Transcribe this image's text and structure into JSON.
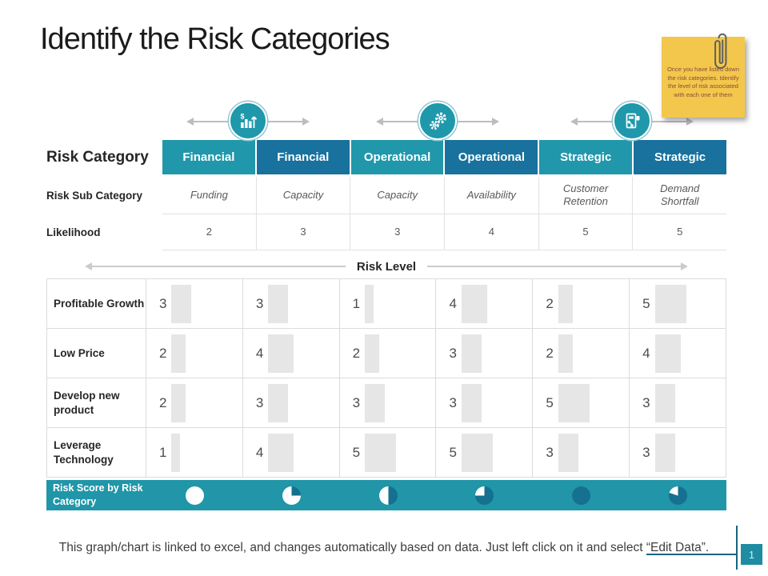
{
  "slide": {
    "title": "Identify the Risk Categories",
    "footer_note": "This graph/chart is linked to excel, and changes automatically based on data. Just left click on it and select “Edit Data”.",
    "page_number": "1"
  },
  "sticky_note": {
    "text": "Once you have listed down the risk categories. Identify the level of risk associated with each one of them"
  },
  "risk_table": {
    "category_label": "Risk Category",
    "categories": [
      "Financial",
      "Financial",
      "Operational",
      "Operational",
      "Strategic",
      "Strategic"
    ],
    "sub_category_label": "Risk Sub Category",
    "sub_categories": [
      "Funding",
      "Capacity",
      "Capacity",
      "Availability",
      "Customer Retention",
      "Demand Shortfall"
    ],
    "likelihood_label": "Likelihood",
    "likelihood_values": [
      "2",
      "3",
      "3",
      "4",
      "5",
      "5"
    ]
  },
  "risk_level_label": "Risk Level",
  "chart_data": {
    "type": "table",
    "title": "Risk Level",
    "columns": [
      "Financial",
      "Financial",
      "Operational",
      "Operational",
      "Strategic",
      "Strategic"
    ],
    "rows": [
      {
        "label": "Profitable Growth",
        "values": [
          3,
          3,
          1,
          4,
          2,
          5
        ]
      },
      {
        "label": "Low Price",
        "values": [
          2,
          4,
          2,
          3,
          2,
          4
        ]
      },
      {
        "label": "Develop new product",
        "values": [
          2,
          3,
          3,
          3,
          5,
          3
        ]
      },
      {
        "label": "Leverage Technology",
        "values": [
          1,
          4,
          5,
          5,
          3,
          3
        ]
      }
    ]
  },
  "risk_score": {
    "label": "Risk Score by Risk Category",
    "pie_fill_percent": [
      0,
      25,
      50,
      75,
      100,
      80
    ]
  },
  "colors": {
    "teal": "#2197AB",
    "dark_blue": "#19719D",
    "score_bar": "#2096A8",
    "pie_dark": "#15718F",
    "bar_fill": "#E6E6E6",
    "note_yellow": "#F2C74C",
    "accent_line": "#17657E"
  }
}
